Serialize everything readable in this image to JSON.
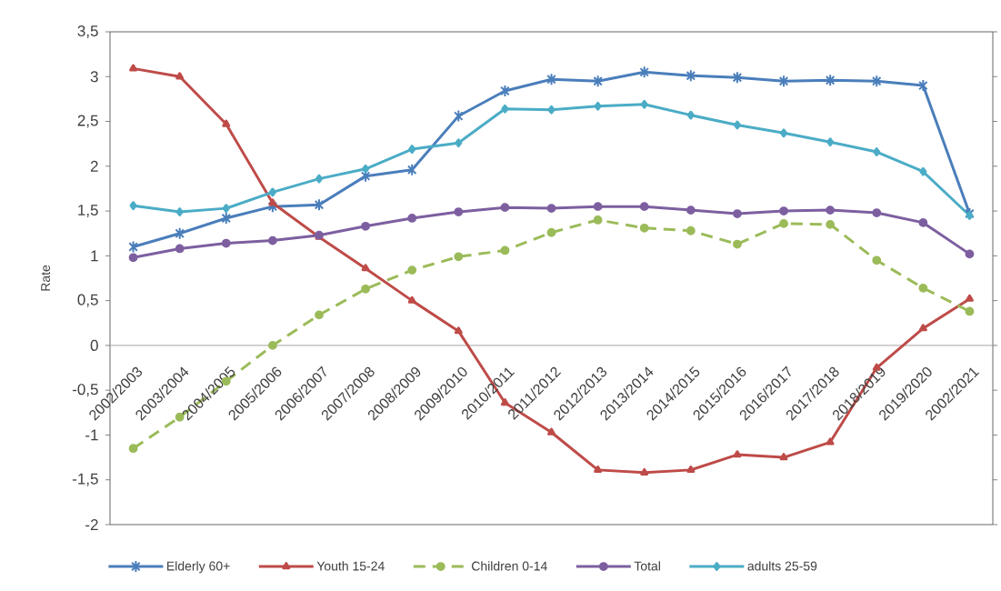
{
  "chart_data": {
    "type": "line",
    "ylabel": "Rate",
    "categories": [
      "2002/2003",
      "2003/2004",
      "2004/2005",
      "2005/2006",
      "2006/2007",
      "2007/2008",
      "2008/2009",
      "2009/2010",
      "2010/2011",
      "2011/2012",
      "2012/2013",
      "2013/2014",
      "2014/2015",
      "2015/2016",
      "2016/2017",
      "2017/2018",
      "2018/2019",
      "2019/2020",
      "2002/2021"
    ],
    "series": [
      {
        "name": "Elderly 60+",
        "color": "#4a7ebb",
        "marker": "cross",
        "values": [
          1.1,
          1.25,
          1.42,
          1.55,
          1.57,
          1.89,
          1.96,
          2.56,
          2.84,
          2.97,
          2.95,
          3.05,
          3.01,
          2.99,
          2.95,
          2.96,
          2.95,
          2.9,
          1.47
        ]
      },
      {
        "name": "Youth 15-24",
        "color": "#be4b48",
        "marker": "triangle",
        "values": [
          3.09,
          3.0,
          2.47,
          1.59,
          1.21,
          0.86,
          0.5,
          0.16,
          -0.64,
          -0.97,
          -1.39,
          -1.42,
          -1.39,
          -1.22,
          -1.25,
          -1.08,
          -0.25,
          0.19,
          0.52
        ]
      },
      {
        "name": "Children 0-14",
        "color": "#9bbb59",
        "marker": "circle",
        "line_style": "dashed",
        "values": [
          -1.15,
          -0.8,
          -0.4,
          0.0,
          0.34,
          0.63,
          0.84,
          0.99,
          1.06,
          1.26,
          1.4,
          1.31,
          1.28,
          1.13,
          1.36,
          1.35,
          0.95,
          0.64,
          0.38
        ]
      },
      {
        "name": "Total",
        "color": "#7d5fa0",
        "marker": "circle",
        "values": [
          0.98,
          1.08,
          1.14,
          1.17,
          1.23,
          1.33,
          1.42,
          1.49,
          1.54,
          1.53,
          1.55,
          1.55,
          1.51,
          1.47,
          1.5,
          1.51,
          1.48,
          1.37,
          1.02
        ]
      },
      {
        "name": "adults 25-59",
        "color": "#4bacc6",
        "marker": "diamond",
        "values": [
          1.56,
          1.49,
          1.53,
          1.71,
          1.86,
          1.97,
          2.19,
          2.26,
          2.64,
          2.63,
          2.67,
          2.69,
          2.57,
          2.46,
          2.37,
          2.27,
          2.16,
          1.94,
          1.45
        ]
      }
    ],
    "ylim": [
      -2,
      3.5
    ],
    "yticks": [
      {
        "value": -2,
        "label": "-2"
      },
      {
        "value": -1.5,
        "label": "-1,5"
      },
      {
        "value": -1,
        "label": "-1"
      },
      {
        "value": -0.5,
        "label": "-0,5"
      },
      0,
      {
        "value": 0.5,
        "label": "0,5"
      },
      1,
      {
        "value": 1.5,
        "label": "1,5"
      },
      2,
      {
        "value": 2.5,
        "label": "2,5"
      },
      3,
      {
        "value": 3.5,
        "label": "3,5"
      }
    ],
    "legend": "bottom"
  }
}
